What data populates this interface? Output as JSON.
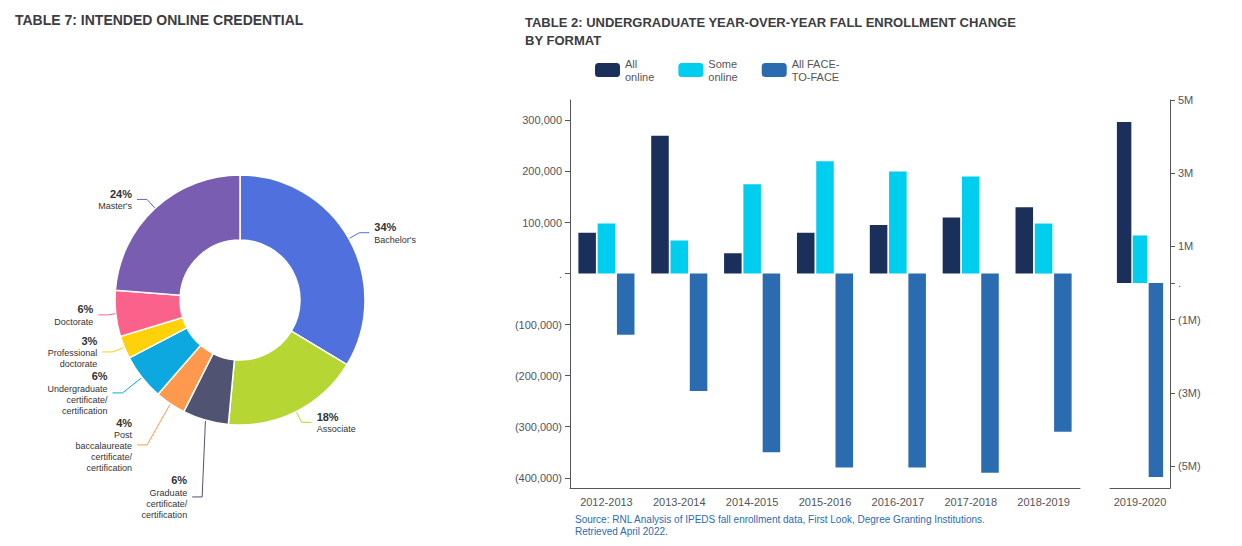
{
  "chart_data": [
    {
      "type": "pie",
      "title": "TABLE 7: INTENDED ONLINE CREDENTIAL",
      "categories": [
        "Bachelor's",
        "Associate",
        "Graduate\ncertificate/\ncertification",
        "Post\nbaccalaureate\ncertificate/\ncertification",
        "Undergraduate\ncertificate/\ncertification",
        "Professional\ndoctorate",
        "Doctorate",
        "Master's"
      ],
      "values": [
        34,
        18,
        6,
        4,
        6,
        3,
        6,
        24
      ],
      "value_labels": [
        "34%",
        "18%",
        "6%",
        "4%",
        "6%",
        "3%",
        "6%",
        "24%"
      ],
      "data_labels": true
    },
    {
      "type": "bar",
      "title": "TABLE 2: UNDERGRADUATE YEAR-OVER-YEAR FALL ENROLLMENT CHANGE\nBY FORMAT",
      "categories": [
        "2012-2013",
        "2013-2014",
        "2014-2015",
        "2015-2016",
        "2016-2017",
        "2017-2018",
        "2018-2019"
      ],
      "series": [
        {
          "name": "All\nonline",
          "color": "#1A2F5A",
          "values": [
            80000,
            270000,
            40000,
            80000,
            95000,
            110000,
            130000
          ]
        },
        {
          "name": "Some\nonline",
          "color": "#00CEEF",
          "values": [
            98000,
            65000,
            175000,
            220000,
            200000,
            190000,
            98000
          ]
        },
        {
          "name": "All FACE-\nTO-FACE",
          "color": "#2B6CB0",
          "values": [
            -120000,
            -230000,
            -350000,
            -380000,
            -380000,
            -390000,
            -310000
          ]
        }
      ],
      "ylim": [
        -420000,
        340000
      ],
      "yticks": [
        {
          "value": 300000,
          "label": "300,000"
        },
        {
          "value": 200000,
          "label": "200,000"
        },
        {
          "value": 100000,
          "label": "100,000"
        },
        {
          "value": 0,
          "label": "."
        },
        {
          "value": -100000,
          "label": "(100,000)"
        },
        {
          "value": -200000,
          "label": "(200,000)"
        },
        {
          "value": -300000,
          "label": "(300,000)"
        },
        {
          "value": -400000,
          "label": "(400,000)"
        }
      ],
      "grid": false,
      "legend": "top",
      "annotations": [
        "Source: RNL Analysis of IPEDS fall enrollment data, First Look, Degree Granting Institutions.\nRetrieved April 2022."
      ]
    },
    {
      "type": "bar",
      "categories": [
        "2019-2020"
      ],
      "series": [
        {
          "name": "All\nonline",
          "color": "#1A2F5A",
          "values": [
            4400000
          ]
        },
        {
          "name": "Some\nonline",
          "color": "#00CEEF",
          "values": [
            1300000
          ]
        },
        {
          "name": "All FACE-\nTO-FACE",
          "color": "#2B6CB0",
          "values": [
            -5300000
          ]
        }
      ],
      "ylim": [
        -5600000,
        5000000
      ],
      "yticks": [
        {
          "value": 5000000,
          "label": "5M"
        },
        {
          "value": 3000000,
          "label": "3M"
        },
        {
          "value": 1000000,
          "label": "1M"
        },
        {
          "value": 0,
          "label": "."
        },
        {
          "value": -1000000,
          "label": "(1M)"
        },
        {
          "value": -3000000,
          "label": "(3M)"
        },
        {
          "value": -5000000,
          "label": "(5M)"
        }
      ],
      "grid": false
    }
  ]
}
